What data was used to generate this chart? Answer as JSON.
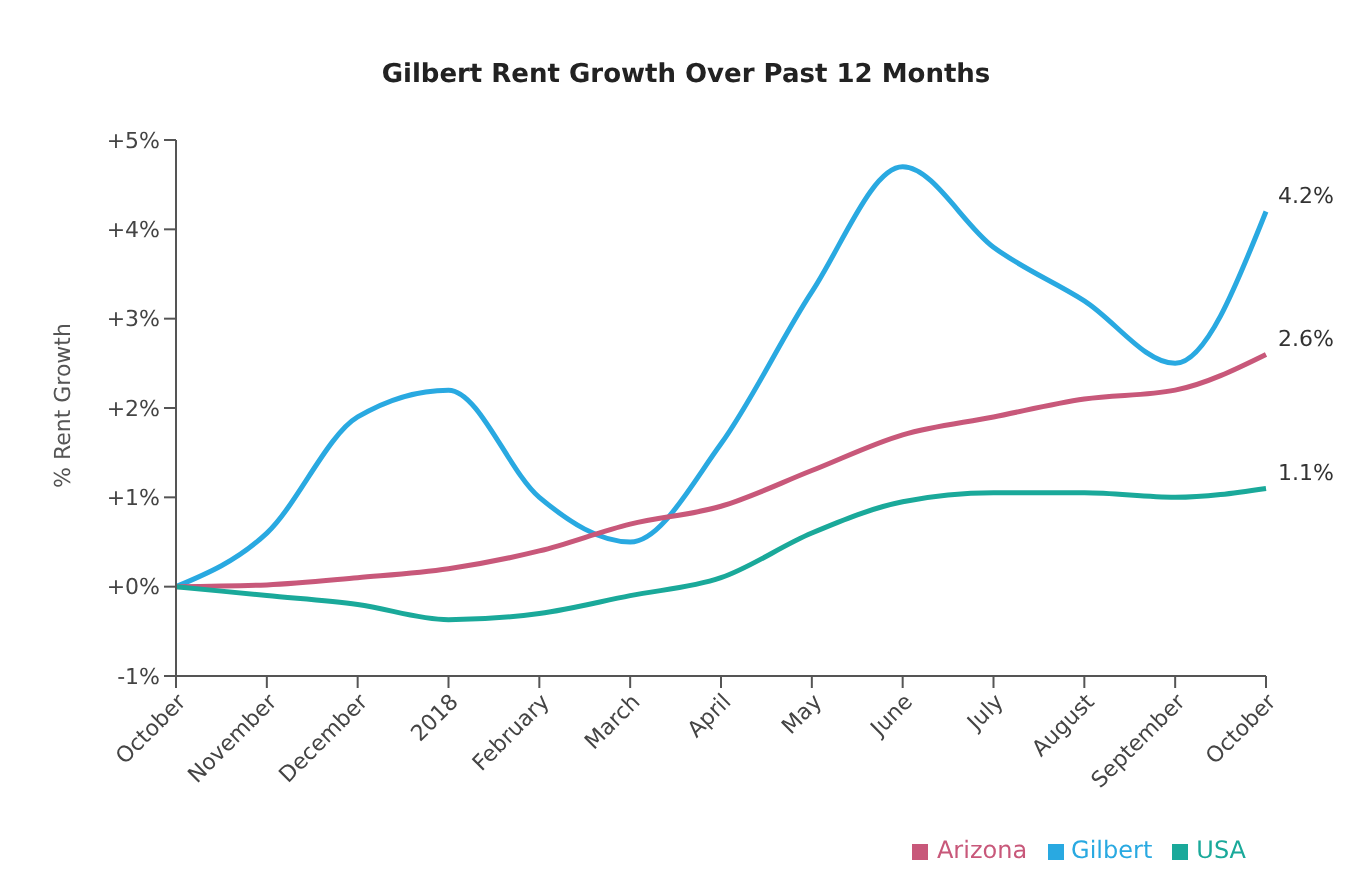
{
  "chart_data": {
    "type": "line",
    "title": "Gilbert Rent Growth Over Past 12 Months",
    "ylabel": "% Rent Growth",
    "categories": [
      "October",
      "November",
      "December",
      "2018",
      "February",
      "March",
      "April",
      "May",
      "June",
      "July",
      "August",
      "September",
      "October"
    ],
    "series": [
      {
        "name": "Gilbert",
        "color": "#29a9e1",
        "values": [
          0,
          0.6,
          1.9,
          2.2,
          1.0,
          0.5,
          1.6,
          3.3,
          4.7,
          3.8,
          3.2,
          2.5,
          4.2
        ],
        "value_labels": [
          null,
          null,
          null,
          null,
          null,
          null,
          null,
          null,
          null,
          null,
          null,
          null,
          "4.2%"
        ]
      },
      {
        "name": "Arizona",
        "color": "#c8587a",
        "values": [
          0,
          0.02,
          0.1,
          0.2,
          0.4,
          0.7,
          0.9,
          1.3,
          1.7,
          1.9,
          2.1,
          2.2,
          2.6
        ],
        "value_labels": [
          null,
          null,
          null,
          null,
          null,
          null,
          null,
          null,
          null,
          null,
          null,
          null,
          "2.6%"
        ]
      },
      {
        "name": "USA",
        "color": "#1aa99a",
        "values": [
          0,
          -0.1,
          -0.2,
          -0.37,
          -0.3,
          -0.1,
          0.1,
          0.6,
          0.95,
          1.05,
          1.05,
          1.0,
          1.1
        ],
        "value_labels": [
          null,
          null,
          null,
          null,
          null,
          null,
          null,
          null,
          null,
          null,
          null,
          null,
          "1.1%"
        ]
      }
    ],
    "ylim": [
      -1,
      5
    ],
    "yticks": [
      {
        "value": -1,
        "label": "-1%"
      },
      {
        "value": 0,
        "label": "+0%"
      },
      {
        "value": 1,
        "label": "+1%"
      },
      {
        "value": 2,
        "label": "+2%"
      },
      {
        "value": 3,
        "label": "+3%"
      },
      {
        "value": 4,
        "label": "+4%"
      },
      {
        "value": 5,
        "label": "+5%"
      }
    ],
    "grid": false,
    "legend": "bottom right",
    "marker": "none",
    "line_style": "solid"
  }
}
